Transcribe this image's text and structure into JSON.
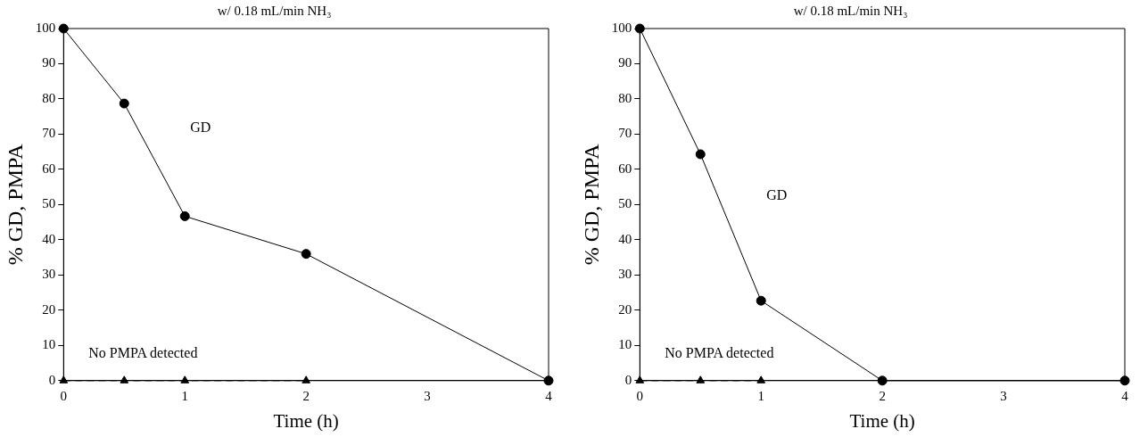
{
  "chart_data": [
    {
      "type": "line",
      "title": "w/ 0.18 mL/min NH₃",
      "xlabel": "Time (h)",
      "ylabel": "% GD, PMPA",
      "x": [
        0,
        0.5,
        1,
        2,
        4
      ],
      "series": [
        {
          "name": "GD",
          "color": "#000000",
          "marker": "circle",
          "line_style": "solid",
          "values": [
            100,
            78.7,
            46.7,
            36,
            0
          ]
        },
        {
          "color": "#000000",
          "marker": "triangle",
          "line_style": "dashed",
          "values": [
            0,
            0,
            0,
            0,
            null
          ]
        }
      ],
      "annotations": [
        "No PMPA detected"
      ],
      "xlim": [
        0,
        4
      ],
      "xticks": [
        0,
        1,
        2,
        3,
        4
      ],
      "ylim": [
        0,
        100
      ],
      "yticks": [
        0,
        10,
        20,
        30,
        40,
        50,
        60,
        70,
        80,
        90,
        100
      ],
      "grid": false,
      "legend": false
    },
    {
      "type": "line",
      "title": "w/ 0.18 mL/min NH₃",
      "xlabel": "Time (h)",
      "ylabel": "% GD, PMPA",
      "x": [
        0,
        0.5,
        1,
        2,
        4
      ],
      "series": [
        {
          "name": "GD",
          "color": "#000000",
          "marker": "circle",
          "line_style": "solid",
          "values": [
            100,
            64.3,
            22.7,
            0,
            0
          ]
        },
        {
          "color": "#000000",
          "marker": "triangle",
          "line_style": "dashed",
          "values": [
            0,
            0,
            0,
            null,
            null
          ]
        }
      ],
      "annotations": [
        "No PMPA detected"
      ],
      "xlim": [
        0,
        4
      ],
      "xticks": [
        0,
        1,
        2,
        3,
        4
      ],
      "ylim": [
        0,
        100
      ],
      "yticks": [
        0,
        10,
        20,
        30,
        40,
        50,
        60,
        70,
        80,
        90,
        100
      ],
      "grid": false,
      "legend": false
    }
  ]
}
